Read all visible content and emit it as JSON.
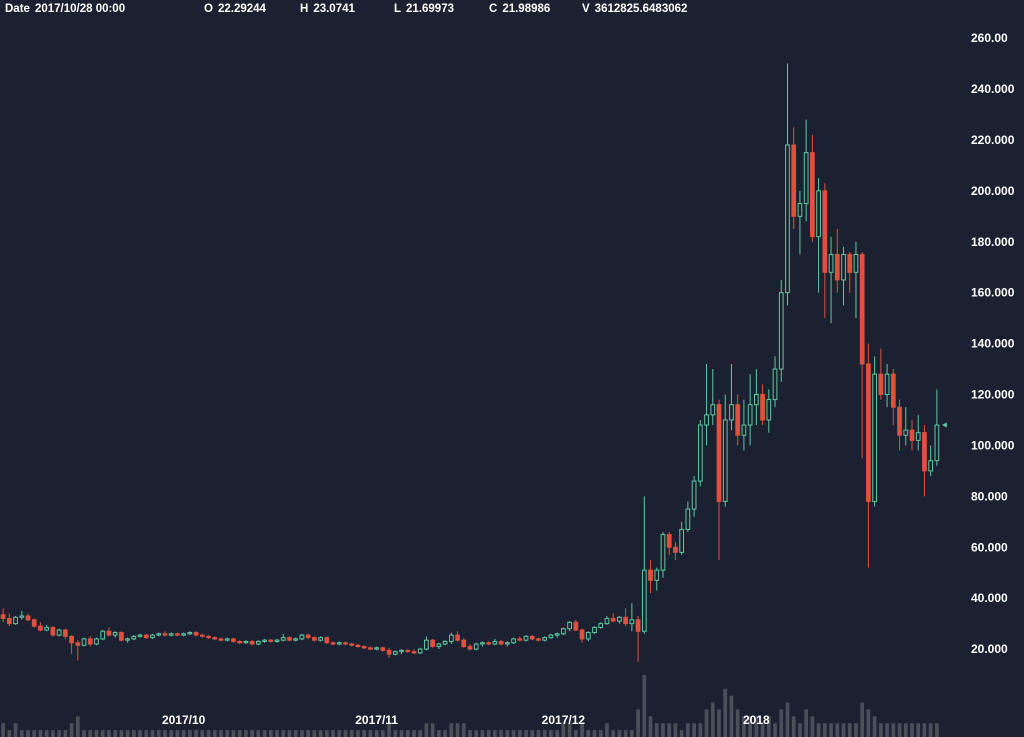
{
  "info": {
    "date_label": "Date",
    "date_value": "2017/10/28 00:00",
    "open_label": "O",
    "open_value": "22.29244",
    "high_label": "H",
    "high_value": "23.0741",
    "low_label": "L",
    "low_value": "21.69973",
    "close_label": "C",
    "close_value": "21.98986",
    "volume_label": "V",
    "volume_value": "3612825.6483062"
  },
  "colors": {
    "background": "#1b2130",
    "up": "#5fc9a0",
    "down": "#e0503f",
    "volume": "#4a4f5a",
    "text": "#ffffff"
  },
  "chart_data": {
    "type": "candlestick",
    "ylim": [
      0,
      262
    ],
    "y_ticks": [
      "20.000",
      "40.000",
      "60.000",
      "80.000",
      "100.000",
      "120.000",
      "140.000",
      "160.000",
      "180.000",
      "200.000",
      "220.000",
      "240.000",
      "260.00"
    ],
    "x_ticks": [
      {
        "label": "2017/10",
        "index": 29
      },
      {
        "label": "2017/11",
        "index": 60
      },
      {
        "label": "2017/12",
        "index": 90
      },
      {
        "label": "2018",
        "index": 121
      }
    ],
    "grid": false,
    "ohlc": [
      [
        33.5,
        36.0,
        30.5,
        32.0
      ],
      [
        32.0,
        34.0,
        29.0,
        30.0
      ],
      [
        30.0,
        33.0,
        29.5,
        32.5
      ],
      [
        32.5,
        35.0,
        31.5,
        33.0
      ],
      [
        33.0,
        34.0,
        31.0,
        31.5
      ],
      [
        31.5,
        32.0,
        28.5,
        29.0
      ],
      [
        29.0,
        30.5,
        27.0,
        27.5
      ],
      [
        27.5,
        29.5,
        27.0,
        28.5
      ],
      [
        28.5,
        29.0,
        25.0,
        25.5
      ],
      [
        25.5,
        28.0,
        25.0,
        27.5
      ],
      [
        27.5,
        28.0,
        24.0,
        25.0
      ],
      [
        25.0,
        25.5,
        18.0,
        22.5
      ],
      [
        22.5,
        23.5,
        15.5,
        21.5
      ],
      [
        21.5,
        24.5,
        21.0,
        24.0
      ],
      [
        24.0,
        25.0,
        21.0,
        22.0
      ],
      [
        22.0,
        24.5,
        21.5,
        24.0
      ],
      [
        24.0,
        27.5,
        23.5,
        27.0
      ],
      [
        27.0,
        28.5,
        25.0,
        25.5
      ],
      [
        25.5,
        27.0,
        24.5,
        26.5
      ],
      [
        26.5,
        27.0,
        23.0,
        23.5
      ],
      [
        23.5,
        24.5,
        22.5,
        24.0
      ],
      [
        24.0,
        25.5,
        23.5,
        25.0
      ],
      [
        25.0,
        26.0,
        24.5,
        25.5
      ],
      [
        25.5,
        26.0,
        24.0,
        24.5
      ],
      [
        24.5,
        26.0,
        24.0,
        25.5
      ],
      [
        25.5,
        26.5,
        25.0,
        26.0
      ],
      [
        26.0,
        27.0,
        25.0,
        25.5
      ],
      [
        25.5,
        26.5,
        25.0,
        26.0
      ],
      [
        26.0,
        26.5,
        25.0,
        25.5
      ],
      [
        25.5,
        26.5,
        25.0,
        26.0
      ],
      [
        26.0,
        27.0,
        25.5,
        26.5
      ],
      [
        26.5,
        27.0,
        25.0,
        25.5
      ],
      [
        25.5,
        26.0,
        24.5,
        25.0
      ],
      [
        25.0,
        25.5,
        24.0,
        24.5
      ],
      [
        24.5,
        25.0,
        23.5,
        24.0
      ],
      [
        24.0,
        24.5,
        23.0,
        23.5
      ],
      [
        23.5,
        24.5,
        23.0,
        24.0
      ],
      [
        24.0,
        24.5,
        22.5,
        23.0
      ],
      [
        23.0,
        23.5,
        22.0,
        22.5
      ],
      [
        22.5,
        23.5,
        22.0,
        23.0
      ],
      [
        23.0,
        23.5,
        21.5,
        22.0
      ],
      [
        22.0,
        23.5,
        21.5,
        23.0
      ],
      [
        23.0,
        24.0,
        22.5,
        23.5
      ],
      [
        23.5,
        24.0,
        22.5,
        23.0
      ],
      [
        23.0,
        24.0,
        22.5,
        23.5
      ],
      [
        23.5,
        26.0,
        23.0,
        24.5
      ],
      [
        24.5,
        25.0,
        23.0,
        23.5
      ],
      [
        23.5,
        24.5,
        23.0,
        24.0
      ],
      [
        24.0,
        26.0,
        23.5,
        25.5
      ],
      [
        25.5,
        26.0,
        24.0,
        24.5
      ],
      [
        24.5,
        25.0,
        23.0,
        23.5
      ],
      [
        23.5,
        25.0,
        23.0,
        24.5
      ],
      [
        24.5,
        25.0,
        22.0,
        22.5
      ],
      [
        22.5,
        23.0,
        21.5,
        22.0
      ],
      [
        22.0,
        23.0,
        21.5,
        22.5
      ],
      [
        22.5,
        23.0,
        21.5,
        22.0
      ],
      [
        22.0,
        22.5,
        21.0,
        21.5
      ],
      [
        21.5,
        22.0,
        20.5,
        21.0
      ],
      [
        21.0,
        21.5,
        20.0,
        20.5
      ],
      [
        20.5,
        21.0,
        19.5,
        20.0
      ],
      [
        20.0,
        21.0,
        19.5,
        20.5
      ],
      [
        20.5,
        21.0,
        19.0,
        19.5
      ],
      [
        19.5,
        20.5,
        16.5,
        18.0
      ],
      [
        18.0,
        19.5,
        17.5,
        19.0
      ],
      [
        19.0,
        20.0,
        18.0,
        19.5
      ],
      [
        19.5,
        20.0,
        18.5,
        19.0
      ],
      [
        19.0,
        20.0,
        18.0,
        18.5
      ],
      [
        18.5,
        20.5,
        18.0,
        20.0
      ],
      [
        20.0,
        25.0,
        19.5,
        23.5
      ],
      [
        23.5,
        24.0,
        20.5,
        21.0
      ],
      [
        21.0,
        22.5,
        20.0,
        22.0
      ],
      [
        22.0,
        23.5,
        21.5,
        23.0
      ],
      [
        23.0,
        26.5,
        22.0,
        25.5
      ],
      [
        25.5,
        27.0,
        23.0,
        23.5
      ],
      [
        23.5,
        24.5,
        20.5,
        21.0
      ],
      [
        21.0,
        22.0,
        19.5,
        20.0
      ],
      [
        20.0,
        22.5,
        19.5,
        22.0
      ],
      [
        22.0,
        23.0,
        21.0,
        22.5
      ],
      [
        22.5,
        23.0,
        21.5,
        22.0
      ],
      [
        22.0,
        24.0,
        21.5,
        23.0
      ],
      [
        23.0,
        23.5,
        21.5,
        22.0
      ],
      [
        22.0,
        23.0,
        21.0,
        22.5
      ],
      [
        22.5,
        24.5,
        22.0,
        24.0
      ],
      [
        24.0,
        25.0,
        23.0,
        23.5
      ],
      [
        23.5,
        25.5,
        23.0,
        25.0
      ],
      [
        25.0,
        25.5,
        23.5,
        24.0
      ],
      [
        24.0,
        24.5,
        23.0,
        23.5
      ],
      [
        23.5,
        25.0,
        23.0,
        24.5
      ],
      [
        24.5,
        26.0,
        24.0,
        25.5
      ],
      [
        25.5,
        26.5,
        24.5,
        26.0
      ],
      [
        26.0,
        28.5,
        25.5,
        28.0
      ],
      [
        28.0,
        31.0,
        27.0,
        30.5
      ],
      [
        30.5,
        31.5,
        27.0,
        27.5
      ],
      [
        27.5,
        28.0,
        22.5,
        24.0
      ],
      [
        24.0,
        27.0,
        23.0,
        26.5
      ],
      [
        26.5,
        29.0,
        26.0,
        28.5
      ],
      [
        28.5,
        30.5,
        28.0,
        30.0
      ],
      [
        30.0,
        33.0,
        29.5,
        32.0
      ],
      [
        32.0,
        34.0,
        30.5,
        31.0
      ],
      [
        31.0,
        33.0,
        30.0,
        32.5
      ],
      [
        32.5,
        36.0,
        29.0,
        30.0
      ],
      [
        30.0,
        38.0,
        27.0,
        31.5
      ],
      [
        31.5,
        33.0,
        15.0,
        27.0
      ],
      [
        27.0,
        80.0,
        26.0,
        51.0
      ],
      [
        51.0,
        55.0,
        42.0,
        47.0
      ],
      [
        47.0,
        52.0,
        43.0,
        51.0
      ],
      [
        51.0,
        66.0,
        48.0,
        65.0
      ],
      [
        65.0,
        66.0,
        57.0,
        60.0
      ],
      [
        60.0,
        62.0,
        55.0,
        58.0
      ],
      [
        58.0,
        70.0,
        57.0,
        67.0
      ],
      [
        67.0,
        78.0,
        66.0,
        75.0
      ],
      [
        75.0,
        88.0,
        72.0,
        86.0
      ],
      [
        86.0,
        110.0,
        84.0,
        108.0
      ],
      [
        108.0,
        132.0,
        100.0,
        112.0
      ],
      [
        112.0,
        130.0,
        108.0,
        116.0
      ],
      [
        116.0,
        118.0,
        55.0,
        78.0
      ],
      [
        78.0,
        120.0,
        76.0,
        110.0
      ],
      [
        110.0,
        132.0,
        106.0,
        116.0
      ],
      [
        116.0,
        120.0,
        100.0,
        104.0
      ],
      [
        104.0,
        118.0,
        98.0,
        108.0
      ],
      [
        108.0,
        128.0,
        100.0,
        116.0
      ],
      [
        116.0,
        130.0,
        108.0,
        120.0
      ],
      [
        120.0,
        124.0,
        108.0,
        110.0
      ],
      [
        110.0,
        122.0,
        105.0,
        118.0
      ],
      [
        118.0,
        135.0,
        115.0,
        130.0
      ],
      [
        130.0,
        165.0,
        125.0,
        160.0
      ],
      [
        160.0,
        250.0,
        155.0,
        218.0
      ],
      [
        218.0,
        225.0,
        185.0,
        190.0
      ],
      [
        190.0,
        200.0,
        175.0,
        195.0
      ],
      [
        195.0,
        228.0,
        188.0,
        215.0
      ],
      [
        215.0,
        222.0,
        180.0,
        182.0
      ],
      [
        182.0,
        205.0,
        160.0,
        200.0
      ],
      [
        200.0,
        203.0,
        150.0,
        168.0
      ],
      [
        168.0,
        182.0,
        148.0,
        175.0
      ],
      [
        175.0,
        185.0,
        160.0,
        165.0
      ],
      [
        165.0,
        178.0,
        155.0,
        175.0
      ],
      [
        175.0,
        176.0,
        160.0,
        168.0
      ],
      [
        168.0,
        180.0,
        150.0,
        175.0
      ],
      [
        175.0,
        176.0,
        95.0,
        132.0
      ],
      [
        132.0,
        140.0,
        52.0,
        78.0
      ],
      [
        78.0,
        135.0,
        76.0,
        128.0
      ],
      [
        128.0,
        138.0,
        118.0,
        120.0
      ],
      [
        120.0,
        132.0,
        115.0,
        128.0
      ],
      [
        128.0,
        130.0,
        108.0,
        115.0
      ],
      [
        115.0,
        118.0,
        98.0,
        104.0
      ],
      [
        104.0,
        115.0,
        100.0,
        106.0
      ],
      [
        106.0,
        110.0,
        98.0,
        102.0
      ],
      [
        102.0,
        112.0,
        98.0,
        105.0
      ],
      [
        105.0,
        108.0,
        80.0,
        90.0
      ],
      [
        90.0,
        100.0,
        88.0,
        94.0
      ],
      [
        94.0,
        122.0,
        92.0,
        108.0
      ]
    ],
    "volume": [
      2,
      1,
      2,
      1,
      1,
      1,
      1,
      1,
      1,
      1,
      1,
      2,
      3,
      1,
      1,
      1,
      1,
      1,
      1,
      1,
      1,
      1,
      1,
      1,
      1,
      1,
      1,
      1,
      1,
      1,
      1,
      1,
      1,
      1,
      1,
      1,
      1,
      1,
      1,
      1,
      1,
      1,
      1,
      1,
      1,
      1,
      1,
      1,
      1,
      1,
      1,
      1,
      1,
      1,
      1,
      1,
      1,
      1,
      1,
      1,
      1,
      1,
      2,
      1,
      1,
      1,
      1,
      1,
      2,
      2,
      1,
      1,
      2,
      2,
      2,
      1,
      1,
      1,
      1,
      1,
      1,
      1,
      1,
      1,
      1,
      1,
      1,
      1,
      1,
      1,
      2,
      2,
      1,
      2,
      1,
      1,
      1,
      2,
      1,
      1,
      1,
      1,
      4,
      9,
      3,
      2,
      2,
      2,
      2,
      1,
      2,
      2,
      2,
      4,
      5,
      4,
      7,
      6,
      4,
      3,
      3,
      3,
      2,
      3,
      2,
      4,
      5,
      3,
      2,
      4,
      3,
      2,
      2,
      2,
      2,
      2,
      2,
      2,
      5,
      4,
      3,
      2,
      2,
      2,
      2,
      2,
      2,
      2,
      2,
      2,
      2
    ]
  }
}
